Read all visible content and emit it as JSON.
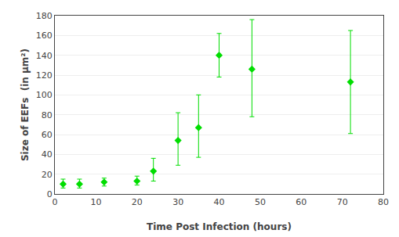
{
  "chart_data": {
    "type": "scatter",
    "xlabel": "Time Post Infection (hours)",
    "ylabel": "Size of EEFs  (in μm²)",
    "x": [
      2,
      6,
      12,
      20,
      24,
      30,
      35,
      40,
      48,
      72
    ],
    "values": [
      10,
      10,
      12,
      13,
      23,
      54,
      67,
      140,
      126,
      113
    ],
    "error_upper": [
      5,
      5,
      4,
      5,
      13,
      28,
      33,
      22,
      50,
      52
    ],
    "error_lower": [
      4,
      4,
      4,
      4,
      10,
      25,
      30,
      22,
      48,
      52
    ],
    "color": "#00DD00",
    "marker": "diamond",
    "xlim": [
      0,
      80
    ],
    "ylim": [
      0,
      180
    ],
    "xticks": [
      0,
      10,
      20,
      30,
      40,
      50,
      60,
      70,
      80
    ],
    "yticks": [
      0,
      20,
      40,
      60,
      80,
      100,
      120,
      140,
      160,
      180
    ],
    "grid": "y"
  }
}
